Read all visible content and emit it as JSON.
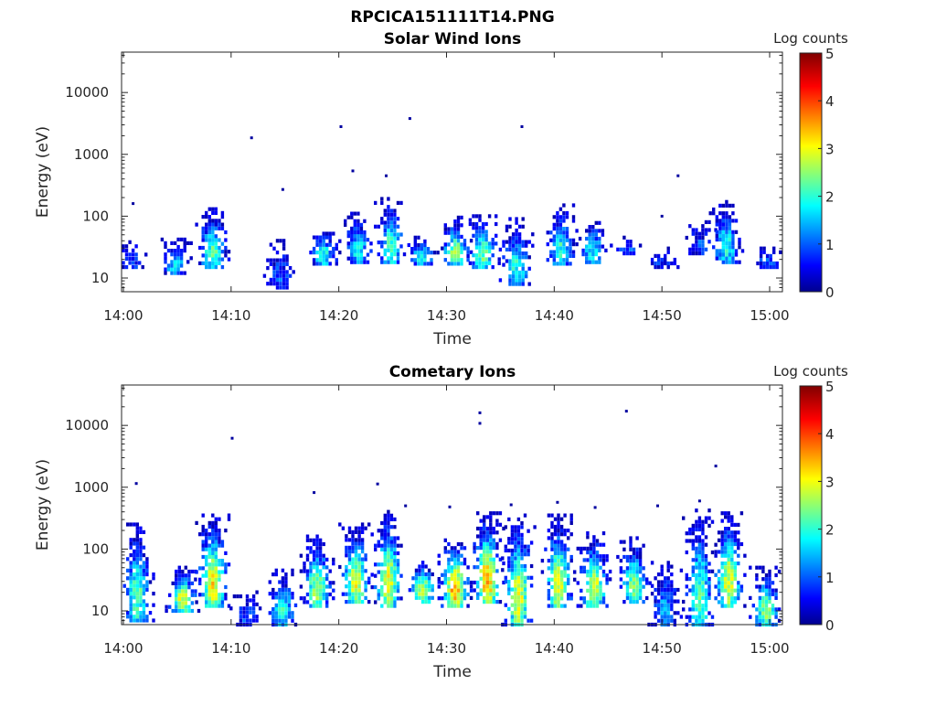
{
  "figure_title": "RPCICA151111T14.PNG",
  "chart_data": [
    {
      "type": "heatmap",
      "title": "Solar Wind Ions",
      "xlabel": "Time",
      "ylabel": "Energy (eV)",
      "x_range_minutes": [
        0,
        61
      ],
      "x_ticks": [
        {
          "v": 0,
          "label": "14:00"
        },
        {
          "v": 10,
          "label": "14:10"
        },
        {
          "v": 20,
          "label": "14:20"
        },
        {
          "v": 30,
          "label": "14:30"
        },
        {
          "v": 40,
          "label": "14:40"
        },
        {
          "v": 50,
          "label": "14:50"
        },
        {
          "v": 60,
          "label": "15:00"
        }
      ],
      "y_scale": "log",
      "y_range": [
        6,
        45000
      ],
      "y_ticks": [
        {
          "v": 10,
          "label": "10"
        },
        {
          "v": 100,
          "label": "100"
        },
        {
          "v": 1000,
          "label": "1000"
        },
        {
          "v": 10000,
          "label": "10000"
        }
      ],
      "colorbar": {
        "label": "Log counts",
        "range": [
          0,
          5
        ],
        "ticks": [
          "0",
          "1",
          "2",
          "3",
          "4",
          "5"
        ],
        "colormap": "jet"
      },
      "grid": false,
      "bursts": [
        {
          "t": 0.9,
          "e": [
            15,
            38
          ],
          "peak": 1.0
        },
        {
          "t": 4.8,
          "e": [
            12,
            42
          ],
          "peak": 1.7
        },
        {
          "t": 8.3,
          "e": [
            15,
            130
          ],
          "peak": 2.3
        },
        {
          "t": 14.6,
          "e": [
            7,
            40
          ],
          "peak": 1.0
        },
        {
          "t": 18.6,
          "e": [
            17,
            60
          ],
          "peak": 2.0
        },
        {
          "t": 21.8,
          "e": [
            18,
            110
          ],
          "peak": 1.8
        },
        {
          "t": 24.9,
          "e": [
            18,
            190
          ],
          "peak": 2.2
        },
        {
          "t": 27.7,
          "e": [
            17,
            45
          ],
          "peak": 2.0
        },
        {
          "t": 30.8,
          "e": [
            17,
            95
          ],
          "peak": 2.6
        },
        {
          "t": 33.4,
          "e": [
            15,
            100
          ],
          "peak": 2.4
        },
        {
          "t": 36.5,
          "e": [
            8,
            90
          ],
          "peak": 2.0
        },
        {
          "t": 40.6,
          "e": [
            17,
            150
          ],
          "peak": 2.0
        },
        {
          "t": 43.6,
          "e": [
            18,
            90
          ],
          "peak": 1.8
        },
        {
          "t": 46.8,
          "e": [
            25,
            45
          ],
          "peak": 1.0
        },
        {
          "t": 50.0,
          "e": [
            15,
            30
          ],
          "peak": 0.8
        },
        {
          "t": 53.5,
          "e": [
            25,
            80
          ],
          "peak": 1.0
        },
        {
          "t": 56.0,
          "e": [
            18,
            170
          ],
          "peak": 2.0
        },
        {
          "t": 59.8,
          "e": [
            15,
            30
          ],
          "peak": 1.0
        }
      ],
      "points": [
        {
          "t": 0.9,
          "e": 160
        },
        {
          "t": 11.9,
          "e": 1850
        },
        {
          "t": 14.8,
          "e": 270
        },
        {
          "t": 20.2,
          "e": 2800
        },
        {
          "t": 21.3,
          "e": 540
        },
        {
          "t": 24.4,
          "e": 450
        },
        {
          "t": 26.6,
          "e": 3800
        },
        {
          "t": 37.0,
          "e": 2800
        },
        {
          "t": 51.5,
          "e": 450
        },
        {
          "t": 50.0,
          "e": 100
        }
      ]
    },
    {
      "type": "heatmap",
      "title": "Cometary Ions",
      "xlabel": "Time",
      "ylabel": "Energy (eV)",
      "x_range_minutes": [
        0,
        61
      ],
      "x_ticks": [
        {
          "v": 0,
          "label": "14:00"
        },
        {
          "v": 10,
          "label": "14:10"
        },
        {
          "v": 20,
          "label": "14:20"
        },
        {
          "v": 30,
          "label": "14:30"
        },
        {
          "v": 40,
          "label": "14:40"
        },
        {
          "v": 50,
          "label": "14:50"
        },
        {
          "v": 60,
          "label": "15:00"
        }
      ],
      "y_scale": "log",
      "y_range": [
        6,
        45000
      ],
      "y_ticks": [
        {
          "v": 10,
          "label": "10"
        },
        {
          "v": 100,
          "label": "100"
        },
        {
          "v": 1000,
          "label": "1000"
        },
        {
          "v": 10000,
          "label": "10000"
        }
      ],
      "colorbar": {
        "label": "Log counts",
        "range": [
          0,
          5
        ],
        "ticks": [
          "0",
          "1",
          "2",
          "3",
          "4",
          "5"
        ],
        "colormap": "jet"
      },
      "grid": false,
      "bursts": [
        {
          "t": 1.3,
          "e": [
            7,
            250
          ],
          "peak": 2.3
        },
        {
          "t": 5.5,
          "e": [
            10,
            50
          ],
          "peak": 3.0
        },
        {
          "t": 8.3,
          "e": [
            12,
            350
          ],
          "peak": 3.2
        },
        {
          "t": 11.5,
          "e": [
            6,
            20
          ],
          "peak": 1.0
        },
        {
          "t": 14.8,
          "e": [
            6,
            45
          ],
          "peak": 2.0
        },
        {
          "t": 18.0,
          "e": [
            12,
            160
          ],
          "peak": 2.8
        },
        {
          "t": 21.6,
          "e": [
            14,
            250
          ],
          "peak": 3.0
        },
        {
          "t": 24.6,
          "e": [
            12,
            400
          ],
          "peak": 3.0
        },
        {
          "t": 27.8,
          "e": [
            14,
            70
          ],
          "peak": 2.8
        },
        {
          "t": 30.8,
          "e": [
            12,
            160
          ],
          "peak": 3.6
        },
        {
          "t": 33.8,
          "e": [
            14,
            380
          ],
          "peak": 3.5
        },
        {
          "t": 36.7,
          "e": [
            6,
            350
          ],
          "peak": 3.0
        },
        {
          "t": 40.4,
          "e": [
            12,
            350
          ],
          "peak": 3.0
        },
        {
          "t": 43.7,
          "e": [
            12,
            180
          ],
          "peak": 3.0
        },
        {
          "t": 47.4,
          "e": [
            14,
            150
          ],
          "peak": 2.5
        },
        {
          "t": 50.3,
          "e": [
            6,
            60
          ],
          "peak": 1.5
        },
        {
          "t": 53.5,
          "e": [
            6,
            420
          ],
          "peak": 2.3
        },
        {
          "t": 56.2,
          "e": [
            12,
            380
          ],
          "peak": 3.0
        },
        {
          "t": 59.7,
          "e": [
            6,
            50
          ],
          "peak": 2.5
        }
      ],
      "points": [
        {
          "t": 1.2,
          "e": 1150
        },
        {
          "t": 10.1,
          "e": 6200
        },
        {
          "t": 17.7,
          "e": 820
        },
        {
          "t": 23.6,
          "e": 1130
        },
        {
          "t": 33.1,
          "e": 16000
        },
        {
          "t": 33.1,
          "e": 10800
        },
        {
          "t": 46.7,
          "e": 17000
        },
        {
          "t": 55.0,
          "e": 2200
        },
        {
          "t": 26.2,
          "e": 500
        },
        {
          "t": 30.3,
          "e": 480
        },
        {
          "t": 36.0,
          "e": 520
        },
        {
          "t": 40.3,
          "e": 570
        },
        {
          "t": 43.8,
          "e": 470
        },
        {
          "t": 49.6,
          "e": 500
        },
        {
          "t": 53.5,
          "e": 600
        }
      ]
    }
  ]
}
